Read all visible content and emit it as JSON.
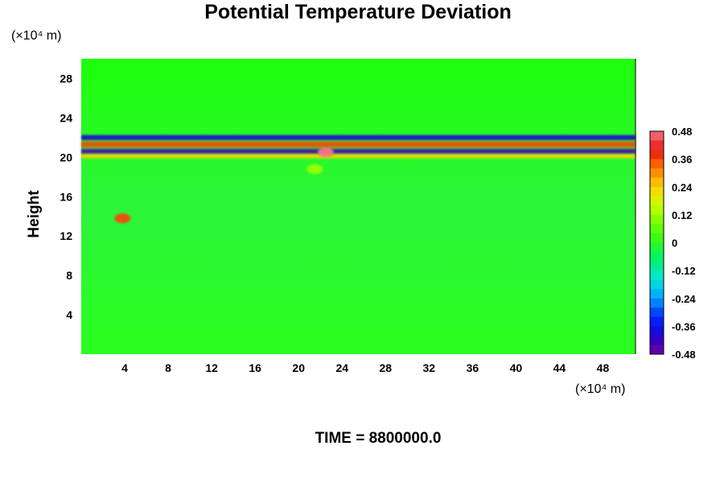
{
  "chart_data": {
    "type": "heatmap",
    "title": "Potential Temperature Deviation",
    "ylabel": "Height",
    "xlabel": "",
    "x_unit_label": "(×10⁴ m)",
    "y_unit_label": "(×10⁴ m)",
    "footer": "TIME = 8800000.0",
    "xlim": [
      0,
      51
    ],
    "ylim": [
      0,
      30
    ],
    "x_ticks": [
      "4",
      "8",
      "12",
      "16",
      "20",
      "24",
      "28",
      "32",
      "36",
      "40",
      "44",
      "48"
    ],
    "y_ticks": [
      "4",
      "8",
      "12",
      "16",
      "20",
      "24",
      "28"
    ],
    "colorbar": {
      "range": [
        -0.48,
        0.48
      ],
      "ticks": [
        "0.48",
        "0.36",
        "0.24",
        "0.12",
        "0",
        "-0.12",
        "-0.24",
        "-0.36",
        "-0.48"
      ],
      "levels": 24
    },
    "background_value": 0.0,
    "features": [
      {
        "kind": "layer",
        "y_center": 22.0,
        "x_range": [
          0,
          51
        ],
        "value": -0.4,
        "thickness": 0.5
      },
      {
        "kind": "layer",
        "y_center": 21.3,
        "x_range": [
          0,
          51
        ],
        "value": 0.36,
        "thickness": 0.6
      },
      {
        "kind": "layer",
        "y_center": 20.6,
        "x_range": [
          0,
          51
        ],
        "value": -0.45,
        "thickness": 0.5
      },
      {
        "kind": "layer",
        "y_center": 20.1,
        "x_range": [
          0,
          51
        ],
        "value": 0.24,
        "thickness": 0.4
      },
      {
        "kind": "patch",
        "x": 22.5,
        "y": 20.5,
        "value": 0.48
      },
      {
        "kind": "patch",
        "x": 3.8,
        "y": 13.8,
        "value": 0.36
      },
      {
        "kind": "patch",
        "x": 21.5,
        "y": 18.8,
        "value": 0.12
      }
    ]
  }
}
